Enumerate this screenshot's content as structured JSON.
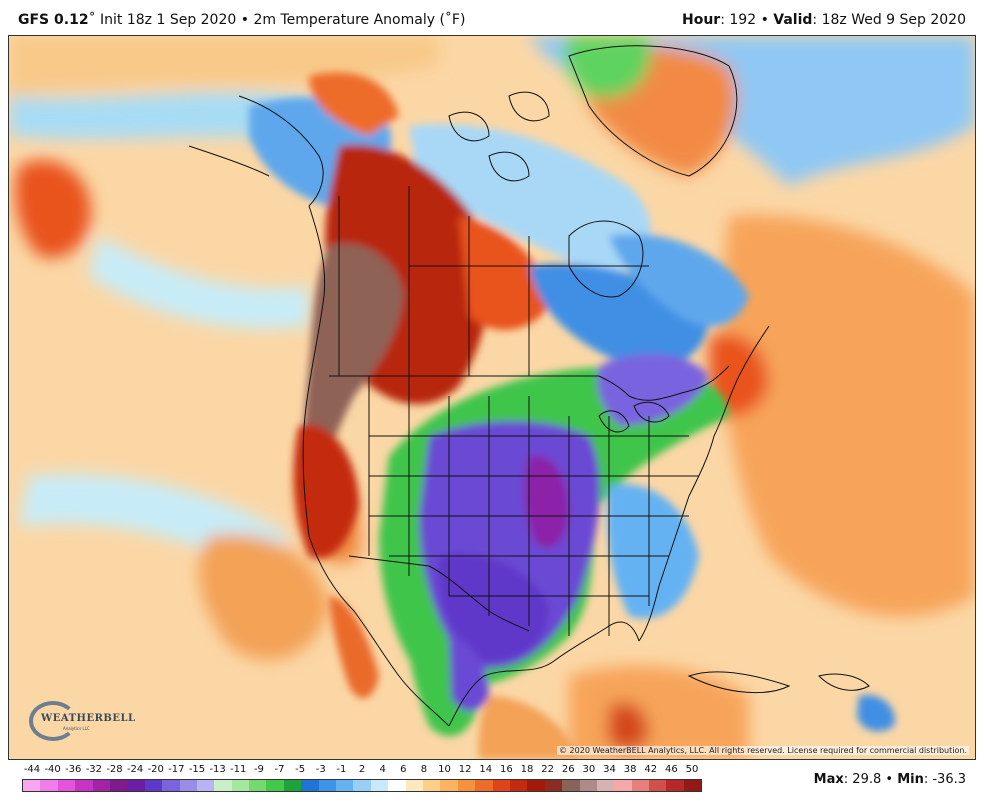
{
  "header": {
    "model": "GFS 0.12",
    "degree": "˚",
    "init_text": "Init 18z 1 Sep 2020",
    "separator": "•",
    "product": "2m Temperature Anomaly (˚F)",
    "hour_label": "Hour",
    "hour_value": ": 192",
    "valid_label": "Valid",
    "valid_value": ": 18z Wed 9 Sep 2020"
  },
  "copyright": "© 2020 WeatherBELL Analytics, LLC. All rights reserved. License required for commercial distribution.",
  "logo": {
    "wordmark": "WEATHERBELL",
    "sub": "Analytics LLC"
  },
  "stats": {
    "max_label": "Max",
    "max_value": ": 29.8",
    "sep": " • ",
    "min_label": "Min",
    "min_value": ": -36.3"
  },
  "legend": {
    "labels": [
      "-44",
      "-40",
      "-36",
      "-32",
      "-28",
      "-24",
      "-20",
      "-17",
      "-15",
      "-13",
      "-11",
      "-9",
      "-7",
      "-5",
      "-3",
      "-1",
      "2",
      "4",
      "6",
      "8",
      "10",
      "12",
      "14",
      "16",
      "18",
      "22",
      "26",
      "30",
      "34",
      "38",
      "42",
      "46",
      "50"
    ],
    "colors": [
      "#f7a6f0",
      "#f07ee8",
      "#e552dc",
      "#c733c4",
      "#a323a6",
      "#7f1b8c",
      "#6a1fa6",
      "#5e39c9",
      "#7a63df",
      "#9a8ce9",
      "#b7b4f1",
      "#c9f0c8",
      "#a4e8a0",
      "#74da6f",
      "#44c74a",
      "#1ea33a",
      "#1f74d6",
      "#3b93ea",
      "#65b2f3",
      "#97cff7",
      "#c8e8fb",
      "#ffffff",
      "#fde9c0",
      "#fdd08a",
      "#fbb35f",
      "#f6923f",
      "#ee6c2a",
      "#de4319",
      "#c42a0f",
      "#a3190a",
      "#8a2c20",
      "#8a6258",
      "#ad8b86",
      "#d4b3b2",
      "#f3a9a8",
      "#e77e7c",
      "#d1504e",
      "#b52a28",
      "#931816"
    ]
  },
  "map_features": {
    "regions": [
      {
        "name": "north-pacific-anomaly",
        "color": "#f8c989"
      },
      {
        "name": "pacific-warm-core",
        "color": "#e9531c"
      },
      {
        "name": "alaska-cool",
        "color": "#5fa7ec"
      },
      {
        "name": "western-canada-heat",
        "color": "#b8270f"
      },
      {
        "name": "pacific-northwest-extreme",
        "color": "#8f6256"
      },
      {
        "name": "central-us-cold",
        "color": "#6a48d4"
      },
      {
        "name": "plains-extreme-cold",
        "color": "#8b21a8"
      },
      {
        "name": "cold-front-green",
        "color": "#3fc54b"
      },
      {
        "name": "hudson-bay-cool",
        "color": "#3f8fe4"
      },
      {
        "name": "greenland-cool",
        "color": "#8fc8f4"
      },
      {
        "name": "atlantic-warm",
        "color": "#f7a45a"
      },
      {
        "name": "baja-warm",
        "color": "#ea6a2a"
      }
    ]
  }
}
